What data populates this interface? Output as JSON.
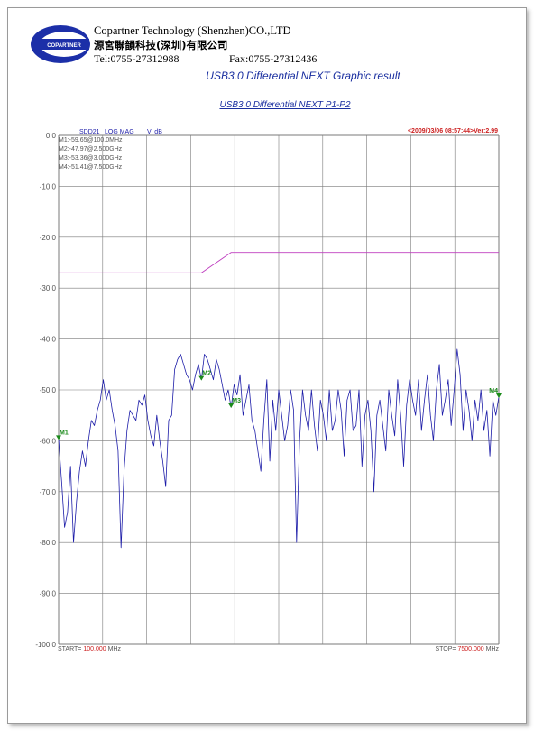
{
  "header": {
    "logo_text": "COPARTNER",
    "company_en": "Copartner Technology (Shenzhen)CO.,LTD",
    "company_cn": "源宮聯韻科技(深圳)有限公司",
    "tel": "Tel:0755-27312988",
    "fax": "Fax:0755-27312436"
  },
  "report_title": "USB3.0 Differential NEXT Graphic result",
  "colors": {
    "trace": "#1c1ca8",
    "limit": "#c040c0",
    "grid": "#7a7a7a",
    "marker": "#1a8a1a",
    "timestamp": "#cc2020",
    "axis_text": "#555555"
  },
  "chart_data": {
    "type": "line",
    "title": "USB3.0 Differential NEXT P1-P2",
    "param_label": "SDD21",
    "format_label": "LOG MAG",
    "unit_label": "V: dB",
    "timestamp": "<2009/03/06 08:57:44>Ver:2.99",
    "ylim": [
      -100,
      0
    ],
    "y_ticks": [
      "0.0",
      "-10.0",
      "-20.0",
      "-30.0",
      "-40.0",
      "-50.0",
      "-60.0",
      "-70.0",
      "-80.0",
      "-90.0",
      "-100.0"
    ],
    "xlim": [
      100,
      7500
    ],
    "start_prefix": "START= ",
    "start_value": "100.000",
    "start_unit": " MHz",
    "stop_prefix": "STOP= ",
    "stop_value": "7500.000",
    "stop_unit": " MHz",
    "markers_text": [
      "M1:-59.65@100.0MHz",
      "M2:-47.97@2.500GHz",
      "M3:-53.36@3.000GHz",
      "M4:-51.41@7.500GHz"
    ],
    "markers": [
      {
        "label": "M1",
        "x": 100,
        "y": -59.65
      },
      {
        "label": "M2",
        "x": 2500,
        "y": -47.97
      },
      {
        "label": "M3",
        "x": 3000,
        "y": -53.36
      },
      {
        "label": "M4",
        "x": 7500,
        "y": -51.41
      }
    ],
    "limit_line": [
      {
        "x": 100,
        "y": -27
      },
      {
        "x": 2500,
        "y": -27
      },
      {
        "x": 3000,
        "y": -23
      },
      {
        "x": 7500,
        "y": -23
      }
    ],
    "trace": [
      [
        100,
        -59.7
      ],
      [
        150,
        -68
      ],
      [
        200,
        -77
      ],
      [
        250,
        -74
      ],
      [
        300,
        -65
      ],
      [
        350,
        -80
      ],
      [
        400,
        -72
      ],
      [
        450,
        -66
      ],
      [
        500,
        -62
      ],
      [
        550,
        -65
      ],
      [
        600,
        -60
      ],
      [
        650,
        -56
      ],
      [
        700,
        -57
      ],
      [
        750,
        -54
      ],
      [
        800,
        -52
      ],
      [
        850,
        -48
      ],
      [
        900,
        -52
      ],
      [
        950,
        -50
      ],
      [
        1000,
        -54
      ],
      [
        1050,
        -57
      ],
      [
        1100,
        -62
      ],
      [
        1150,
        -81
      ],
      [
        1200,
        -66
      ],
      [
        1250,
        -58
      ],
      [
        1300,
        -54
      ],
      [
        1350,
        -55
      ],
      [
        1400,
        -56
      ],
      [
        1450,
        -52
      ],
      [
        1500,
        -53
      ],
      [
        1550,
        -51
      ],
      [
        1600,
        -56
      ],
      [
        1650,
        -59
      ],
      [
        1700,
        -61
      ],
      [
        1750,
        -55
      ],
      [
        1800,
        -60
      ],
      [
        1850,
        -64
      ],
      [
        1900,
        -69
      ],
      [
        1950,
        -56
      ],
      [
        2000,
        -55
      ],
      [
        2050,
        -46
      ],
      [
        2100,
        -44
      ],
      [
        2150,
        -43
      ],
      [
        2200,
        -45
      ],
      [
        2250,
        -47
      ],
      [
        2300,
        -48
      ],
      [
        2350,
        -50
      ],
      [
        2400,
        -47
      ],
      [
        2450,
        -45
      ],
      [
        2500,
        -48
      ],
      [
        2550,
        -43
      ],
      [
        2600,
        -44
      ],
      [
        2650,
        -46
      ],
      [
        2700,
        -48
      ],
      [
        2750,
        -44
      ],
      [
        2800,
        -46
      ],
      [
        2850,
        -49
      ],
      [
        2900,
        -52
      ],
      [
        2950,
        -50
      ],
      [
        3000,
        -53.4
      ],
      [
        3050,
        -49
      ],
      [
        3100,
        -51
      ],
      [
        3150,
        -47
      ],
      [
        3200,
        -55
      ],
      [
        3250,
        -52
      ],
      [
        3300,
        -49
      ],
      [
        3350,
        -56
      ],
      [
        3400,
        -58
      ],
      [
        3450,
        -62
      ],
      [
        3500,
        -66
      ],
      [
        3550,
        -56
      ],
      [
        3600,
        -48
      ],
      [
        3650,
        -64
      ],
      [
        3700,
        -52
      ],
      [
        3750,
        -58
      ],
      [
        3800,
        -50
      ],
      [
        3850,
        -55
      ],
      [
        3900,
        -60
      ],
      [
        3950,
        -57
      ],
      [
        4000,
        -50
      ],
      [
        4050,
        -54
      ],
      [
        4100,
        -80
      ],
      [
        4150,
        -60
      ],
      [
        4200,
        -50
      ],
      [
        4250,
        -55
      ],
      [
        4300,
        -58
      ],
      [
        4350,
        -50
      ],
      [
        4400,
        -57
      ],
      [
        4450,
        -62
      ],
      [
        4500,
        -52
      ],
      [
        4550,
        -55
      ],
      [
        4600,
        -60
      ],
      [
        4650,
        -50
      ],
      [
        4700,
        -58
      ],
      [
        4750,
        -56
      ],
      [
        4800,
        -50
      ],
      [
        4850,
        -54
      ],
      [
        4900,
        -63
      ],
      [
        4950,
        -52
      ],
      [
        5000,
        -50
      ],
      [
        5050,
        -58
      ],
      [
        5100,
        -57
      ],
      [
        5150,
        -50
      ],
      [
        5200,
        -65
      ],
      [
        5250,
        -55
      ],
      [
        5300,
        -52
      ],
      [
        5350,
        -58
      ],
      [
        5400,
        -70
      ],
      [
        5450,
        -55
      ],
      [
        5500,
        -52
      ],
      [
        5550,
        -57
      ],
      [
        5600,
        -62
      ],
      [
        5650,
        -50
      ],
      [
        5700,
        -55
      ],
      [
        5750,
        -59
      ],
      [
        5800,
        -48
      ],
      [
        5850,
        -55
      ],
      [
        5900,
        -65
      ],
      [
        5950,
        -53
      ],
      [
        6000,
        -48
      ],
      [
        6050,
        -52
      ],
      [
        6100,
        -55
      ],
      [
        6150,
        -48
      ],
      [
        6200,
        -58
      ],
      [
        6250,
        -52
      ],
      [
        6300,
        -47
      ],
      [
        6350,
        -55
      ],
      [
        6400,
        -60
      ],
      [
        6450,
        -50
      ],
      [
        6500,
        -45
      ],
      [
        6550,
        -55
      ],
      [
        6600,
        -52
      ],
      [
        6650,
        -48
      ],
      [
        6700,
        -57
      ],
      [
        6750,
        -50
      ],
      [
        6800,
        -42
      ],
      [
        6850,
        -47
      ],
      [
        6900,
        -58
      ],
      [
        6950,
        -50
      ],
      [
        7000,
        -54
      ],
      [
        7050,
        -60
      ],
      [
        7100,
        -52
      ],
      [
        7150,
        -56
      ],
      [
        7200,
        -50
      ],
      [
        7250,
        -58
      ],
      [
        7300,
        -54
      ],
      [
        7350,
        -63
      ],
      [
        7400,
        -52
      ],
      [
        7450,
        -55
      ],
      [
        7500,
        -51.4
      ]
    ]
  }
}
